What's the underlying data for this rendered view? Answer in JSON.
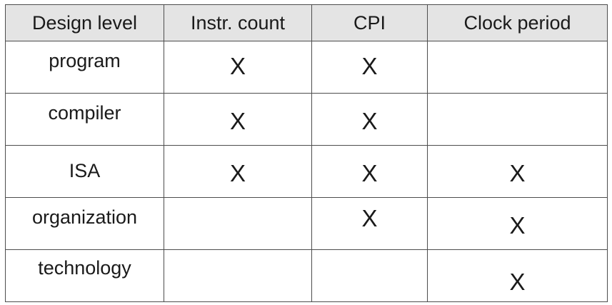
{
  "table": {
    "headers": [
      "Design level",
      "Instr. count",
      "CPI",
      "Clock period"
    ],
    "rows": [
      {
        "level": "program",
        "marks": [
          "X",
          "X",
          ""
        ]
      },
      {
        "level": "compiler",
        "marks": [
          "X",
          "X",
          ""
        ]
      },
      {
        "level": "ISA",
        "marks": [
          "X",
          "X",
          "X"
        ]
      },
      {
        "level": "organization",
        "marks": [
          "",
          "X",
          "X"
        ]
      },
      {
        "level": "technology",
        "marks": [
          "",
          "",
          "X"
        ]
      }
    ]
  }
}
